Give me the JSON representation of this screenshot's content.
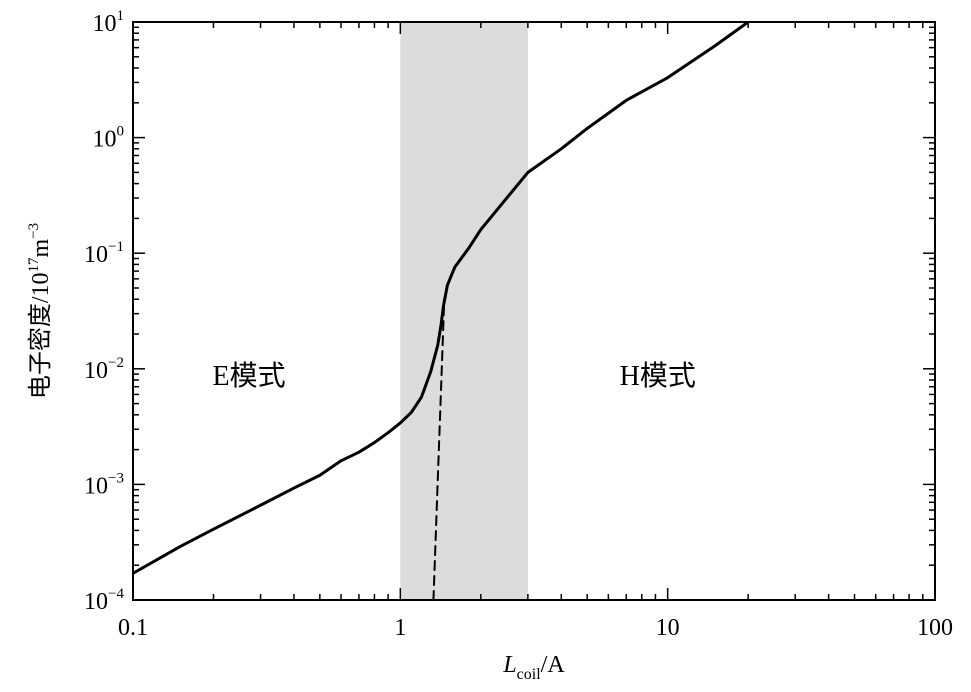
{
  "chart_data": {
    "type": "line",
    "title": "",
    "xlabel": {
      "main": "L",
      "sub": "coil",
      "unit": "/A"
    },
    "ylabel": {
      "main": "电子密度/10",
      "sup1": "17",
      "mid": "m",
      "sup2": "−3"
    },
    "xscale": "log",
    "yscale": "log",
    "xlim": [
      0.1,
      100
    ],
    "ylim": [
      0.0001,
      10
    ],
    "grid": false,
    "x_tick_labels": [
      "0.1",
      "1",
      "10",
      "100"
    ],
    "x_tick_values": [
      0.1,
      1,
      10,
      100
    ],
    "y_tick_labels": [
      {
        "base": "10",
        "exp": "−4",
        "value": 0.0001
      },
      {
        "base": "10",
        "exp": "−3",
        "value": 0.001
      },
      {
        "base": "10",
        "exp": "−2",
        "value": 0.01
      },
      {
        "base": "10",
        "exp": "−1",
        "value": 0.1
      },
      {
        "base": "10",
        "exp": "0",
        "value": 1
      },
      {
        "base": "10",
        "exp": "1",
        "value": 10
      }
    ],
    "shaded_region": {
      "x": [
        1.0,
        3.0
      ],
      "color": "#dcdcdc"
    },
    "annotations": [
      {
        "text": "E模式",
        "x": 0.3,
        "y": 0.01
      },
      {
        "text": "H模式",
        "x": 10,
        "y": 0.01
      }
    ],
    "series": [
      {
        "style": "solid",
        "color": "#000000",
        "x": [
          0.1,
          0.15,
          0.2,
          0.3,
          0.4,
          0.5,
          0.6,
          0.7,
          0.8,
          0.9,
          1.0,
          1.1,
          1.2,
          1.3,
          1.38,
          1.42,
          1.45,
          1.5,
          1.6,
          1.8,
          2.0,
          2.5,
          3.0,
          4.0,
          5.0,
          7.0,
          10.0,
          15.0,
          20.0
        ],
        "y": [
          0.00017,
          0.00029,
          0.00041,
          0.00066,
          0.00093,
          0.0012,
          0.0016,
          0.0019,
          0.0023,
          0.0028,
          0.0034,
          0.0042,
          0.0057,
          0.0095,
          0.016,
          0.024,
          0.035,
          0.053,
          0.076,
          0.11,
          0.16,
          0.3,
          0.5,
          0.8,
          1.2,
          2.1,
          3.3,
          6.2,
          10.0
        ]
      },
      {
        "style": "dashed",
        "color": "#000000",
        "x": [
          1.33,
          1.46
        ],
        "y": [
          0.0001,
          0.04
        ]
      }
    ]
  }
}
